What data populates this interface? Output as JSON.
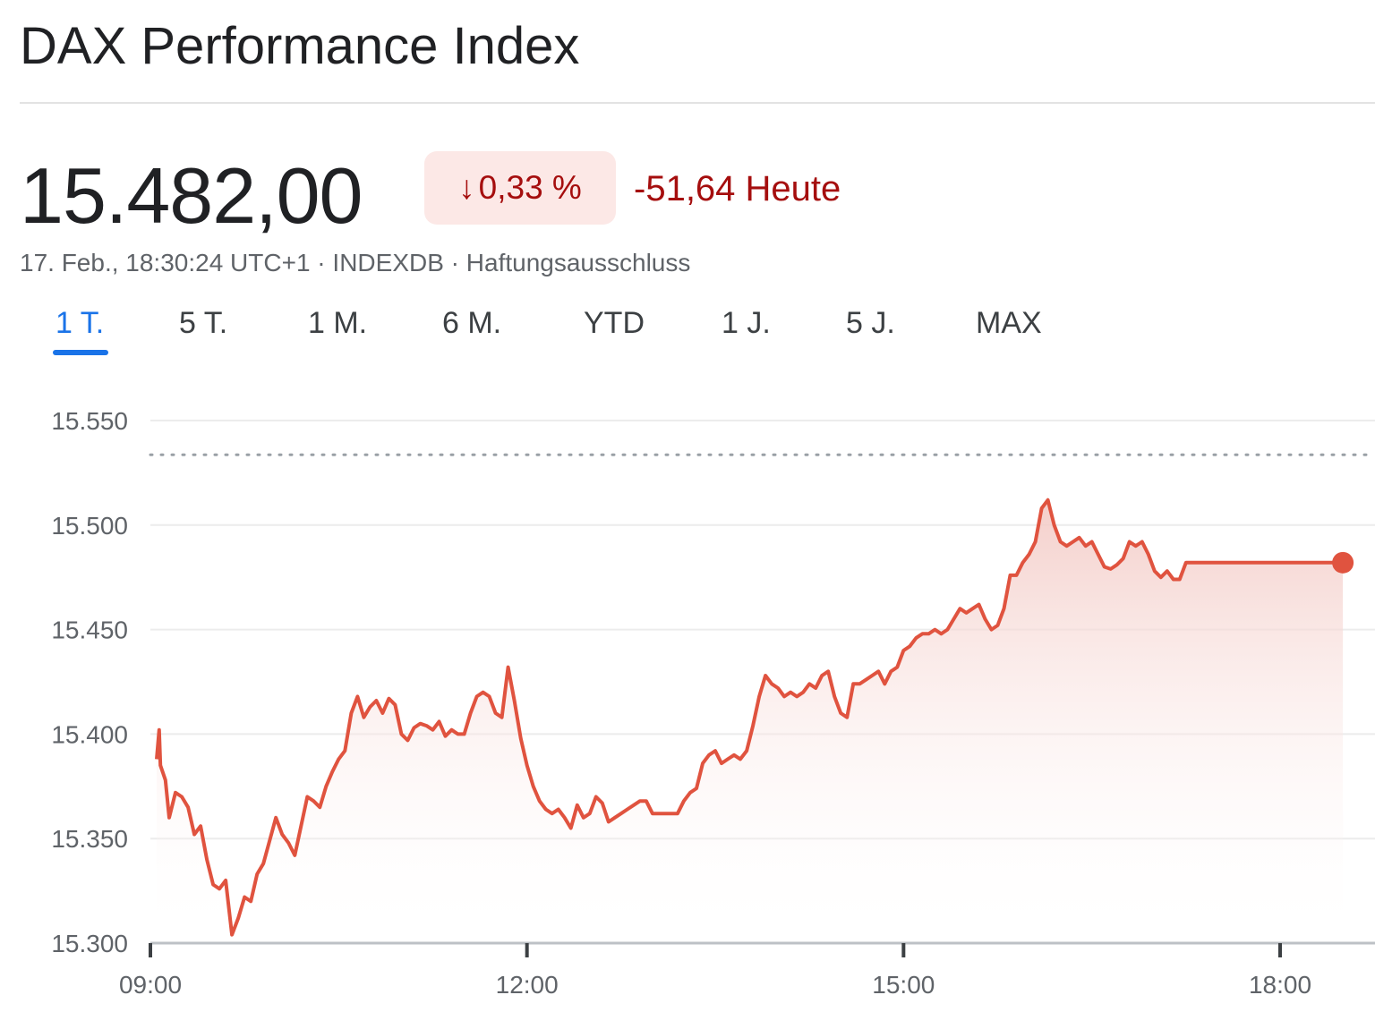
{
  "header": {
    "title": "DAX Performance Index"
  },
  "quote": {
    "price": "15.482,00",
    "change_arrow": "↓",
    "change_percent": "0,33 %",
    "change_today": "-51,64 Heute",
    "timestamp": "17. Feb., 18:30:24 UTC+1",
    "separator": " · ",
    "source": "INDEXDB",
    "disclaimer": "Haftungsausschluss"
  },
  "tabs": [
    {
      "label": "1 T.",
      "active": true
    },
    {
      "label": "5 T.",
      "active": false
    },
    {
      "label": "1 M.",
      "active": false
    },
    {
      "label": "6 M.",
      "active": false
    },
    {
      "label": "YTD",
      "active": false
    },
    {
      "label": "1 J.",
      "active": false
    },
    {
      "label": "5 J.",
      "active": false
    },
    {
      "label": "MAX",
      "active": false
    }
  ],
  "colors": {
    "line": "#e0533f",
    "fill_top": "#f3c9c4",
    "negative": "#a50e0e",
    "badge_bg": "#fce8e6",
    "active_tab": "#1a73e8"
  },
  "chart_data": {
    "type": "area",
    "title": "",
    "xlabel": "",
    "ylabel": "",
    "y_ticks": [
      15300,
      15350,
      15400,
      15450,
      15500,
      15550
    ],
    "y_tick_labels": [
      "15.300",
      "15.350",
      "15.400",
      "15.450",
      "15.500",
      "15.550"
    ],
    "ylim": [
      15300,
      15550
    ],
    "x_ticks": [
      9,
      12,
      15,
      18
    ],
    "x_tick_labels": [
      "09:00",
      "12:00",
      "15:00",
      "18:00"
    ],
    "xlim": [
      9,
      18.5
    ],
    "previous_close": 15533.64,
    "grid": true,
    "series": [
      {
        "values": [
          [
            9.05,
            15388
          ],
          [
            9.07,
            15402
          ],
          [
            9.08,
            15385
          ],
          [
            9.12,
            15378
          ],
          [
            9.15,
            15360
          ],
          [
            9.2,
            15372
          ],
          [
            9.25,
            15370
          ],
          [
            9.3,
            15365
          ],
          [
            9.35,
            15352
          ],
          [
            9.4,
            15356
          ],
          [
            9.45,
            15340
          ],
          [
            9.5,
            15328
          ],
          [
            9.55,
            15326
          ],
          [
            9.6,
            15330
          ],
          [
            9.65,
            15304
          ],
          [
            9.7,
            15312
          ],
          [
            9.75,
            15322
          ],
          [
            9.8,
            15320
          ],
          [
            9.85,
            15333
          ],
          [
            9.9,
            15338
          ],
          [
            9.95,
            15349
          ],
          [
            10.0,
            15360
          ],
          [
            10.05,
            15352
          ],
          [
            10.1,
            15348
          ],
          [
            10.15,
            15342
          ],
          [
            10.2,
            15356
          ],
          [
            10.25,
            15370
          ],
          [
            10.3,
            15368
          ],
          [
            10.35,
            15365
          ],
          [
            10.4,
            15375
          ],
          [
            10.45,
            15382
          ],
          [
            10.5,
            15388
          ],
          [
            10.55,
            15392
          ],
          [
            10.6,
            15410
          ],
          [
            10.65,
            15418
          ],
          [
            10.7,
            15408
          ],
          [
            10.75,
            15413
          ],
          [
            10.8,
            15416
          ],
          [
            10.85,
            15410
          ],
          [
            10.9,
            15417
          ],
          [
            10.95,
            15414
          ],
          [
            11.0,
            15400
          ],
          [
            11.05,
            15397
          ],
          [
            11.1,
            15403
          ],
          [
            11.15,
            15405
          ],
          [
            11.2,
            15404
          ],
          [
            11.25,
            15402
          ],
          [
            11.3,
            15406
          ],
          [
            11.35,
            15399
          ],
          [
            11.4,
            15402
          ],
          [
            11.45,
            15400
          ],
          [
            11.5,
            15400
          ],
          [
            11.55,
            15410
          ],
          [
            11.6,
            15418
          ],
          [
            11.65,
            15420
          ],
          [
            11.7,
            15418
          ],
          [
            11.75,
            15410
          ],
          [
            11.8,
            15408
          ],
          [
            11.85,
            15432
          ],
          [
            11.9,
            15416
          ],
          [
            11.95,
            15398
          ],
          [
            12.0,
            15385
          ],
          [
            12.05,
            15375
          ],
          [
            12.1,
            15368
          ],
          [
            12.15,
            15364
          ],
          [
            12.2,
            15362
          ],
          [
            12.25,
            15364
          ],
          [
            12.3,
            15360
          ],
          [
            12.35,
            15355
          ],
          [
            12.4,
            15366
          ],
          [
            12.45,
            15360
          ],
          [
            12.5,
            15362
          ],
          [
            12.55,
            15370
          ],
          [
            12.6,
            15367
          ],
          [
            12.65,
            15358
          ],
          [
            12.7,
            15360
          ],
          [
            12.75,
            15362
          ],
          [
            12.8,
            15364
          ],
          [
            12.85,
            15366
          ],
          [
            12.9,
            15368
          ],
          [
            12.95,
            15368
          ],
          [
            13.0,
            15362
          ],
          [
            13.1,
            15362
          ],
          [
            13.2,
            15362
          ],
          [
            13.25,
            15368
          ],
          [
            13.3,
            15372
          ],
          [
            13.35,
            15374
          ],
          [
            13.4,
            15386
          ],
          [
            13.45,
            15390
          ],
          [
            13.5,
            15392
          ],
          [
            13.55,
            15386
          ],
          [
            13.6,
            15388
          ],
          [
            13.65,
            15390
          ],
          [
            13.7,
            15388
          ],
          [
            13.75,
            15392
          ],
          [
            13.8,
            15404
          ],
          [
            13.85,
            15418
          ],
          [
            13.9,
            15428
          ],
          [
            13.95,
            15424
          ],
          [
            14.0,
            15422
          ],
          [
            14.05,
            15418
          ],
          [
            14.1,
            15420
          ],
          [
            14.15,
            15418
          ],
          [
            14.2,
            15420
          ],
          [
            14.25,
            15424
          ],
          [
            14.3,
            15422
          ],
          [
            14.35,
            15428
          ],
          [
            14.4,
            15430
          ],
          [
            14.45,
            15418
          ],
          [
            14.5,
            15410
          ],
          [
            14.55,
            15408
          ],
          [
            14.6,
            15424
          ],
          [
            14.65,
            15424
          ],
          [
            14.7,
            15426
          ],
          [
            14.75,
            15428
          ],
          [
            14.8,
            15430
          ],
          [
            14.85,
            15424
          ],
          [
            14.9,
            15430
          ],
          [
            14.95,
            15432
          ],
          [
            15.0,
            15440
          ],
          [
            15.05,
            15442
          ],
          [
            15.1,
            15446
          ],
          [
            15.15,
            15448
          ],
          [
            15.2,
            15448
          ],
          [
            15.25,
            15450
          ],
          [
            15.3,
            15448
          ],
          [
            15.35,
            15450
          ],
          [
            15.4,
            15455
          ],
          [
            15.45,
            15460
          ],
          [
            15.5,
            15458
          ],
          [
            15.55,
            15460
          ],
          [
            15.6,
            15462
          ],
          [
            15.65,
            15455
          ],
          [
            15.7,
            15450
          ],
          [
            15.75,
            15452
          ],
          [
            15.8,
            15460
          ],
          [
            15.85,
            15476
          ],
          [
            15.9,
            15476
          ],
          [
            15.95,
            15482
          ],
          [
            16.0,
            15486
          ],
          [
            16.05,
            15492
          ],
          [
            16.1,
            15508
          ],
          [
            16.15,
            15512
          ],
          [
            16.2,
            15500
          ],
          [
            16.25,
            15492
          ],
          [
            16.3,
            15490
          ],
          [
            16.35,
            15492
          ],
          [
            16.4,
            15494
          ],
          [
            16.45,
            15490
          ],
          [
            16.5,
            15492
          ],
          [
            16.55,
            15486
          ],
          [
            16.6,
            15480
          ],
          [
            16.65,
            15479
          ],
          [
            16.7,
            15481
          ],
          [
            16.75,
            15484
          ],
          [
            16.8,
            15492
          ],
          [
            16.85,
            15490
          ],
          [
            16.9,
            15492
          ],
          [
            16.95,
            15486
          ],
          [
            17.0,
            15478
          ],
          [
            17.05,
            15475
          ],
          [
            17.1,
            15478
          ],
          [
            17.15,
            15474
          ],
          [
            17.2,
            15474
          ],
          [
            17.25,
            15482
          ],
          [
            17.7,
            15482
          ],
          [
            18.0,
            15482
          ],
          [
            18.5,
            15482
          ]
        ]
      }
    ]
  }
}
